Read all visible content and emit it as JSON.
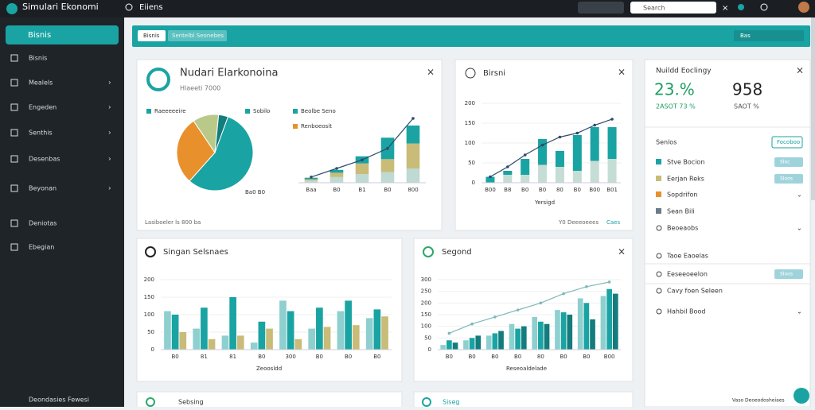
{
  "topbar": {
    "app_name": "Simulari Ekonomi",
    "tab": "Eiiens",
    "search": "Search"
  },
  "sidebar": {
    "active": "Bisnis",
    "items": [
      "Bisnis",
      "Mealels",
      "Engeden",
      "Senthis",
      "Desenbas",
      "Beyonan",
      "Deniotas",
      "Ebegian"
    ],
    "footer": "Deondasies Fewesi"
  },
  "toolbar": {
    "buttons": [
      "Bisnis",
      "Sentelbl Seonebes"
    ],
    "right": "Bas"
  },
  "cards": [
    {
      "title": "Nudari Elarkonoina",
      "subtitle": "Hlaeeti 7000",
      "footer": "Lasiboeler ls 800 ba",
      "legend": [
        {
          "label": "Raeeeeeire",
          "color": "#1aa3a3"
        },
        {
          "label": "Sobilo",
          "color": "#1aa3a3"
        },
        {
          "label": "Beolbe Seno",
          "color": "#1aa3a3"
        },
        {
          "label": "Renboeosit",
          "color": "#e8912c"
        }
      ],
      "pie": {
        "values": [
          56,
          29,
          11,
          4
        ],
        "colors": [
          "#1aa3a3",
          "#e8912c",
          "#b9c98a",
          "#137c7c"
        ],
        "note": "Ba0 B0"
      },
      "chart": {
        "ylim": [
          0,
          100
        ],
        "categories": [
          "Baa",
          "B0",
          "B1",
          "B0",
          "800"
        ],
        "stacked": true,
        "series": [
          {
            "color": "#bfd9d3",
            "values": [
              3,
              8,
              12,
              15,
              20
            ]
          },
          {
            "color": "#c9bc78",
            "values": [
              2,
              6,
              15,
              18,
              35
            ]
          },
          {
            "color": "#1aa3a3",
            "values": [
              2,
              4,
              10,
              30,
              25
            ]
          },
          {
            "kind": "line",
            "color": "#2e4a6b",
            "values": [
              8,
              20,
              32,
              48,
              90
            ]
          }
        ]
      }
    },
    {
      "title": "Birsni",
      "legend": "Yersigd",
      "footer": "Y0 Deeeoeees",
      "footer_button": "Caes",
      "chart": {
        "ylim": [
          0,
          200
        ],
        "yticks": [
          0,
          50,
          100,
          150,
          200
        ],
        "categories": [
          "B00",
          "B8",
          "B0",
          "B0",
          "80",
          "B0",
          "B00",
          "B01"
        ],
        "stacked": true,
        "series": [
          {
            "color": "#c5ddd4",
            "values": [
              0,
              20,
              20,
              45,
              40,
              30,
              55,
              60
            ]
          },
          {
            "color": "#1aa3a3",
            "values": [
              15,
              10,
              40,
              65,
              40,
              90,
              85,
              80
            ]
          },
          {
            "kind": "line",
            "color": "#2e4a6b",
            "values": [
              15,
              40,
              70,
              95,
              115,
              125,
              145,
              160
            ]
          }
        ]
      }
    },
    {
      "title": "Singan Selsnaes",
      "legend": "Zeoosldd",
      "chart": {
        "ylim": [
          0,
          200
        ],
        "yticks": [
          0,
          50,
          100,
          150,
          200
        ],
        "categories": [
          "B0",
          "81",
          "81",
          "B0",
          "300",
          "B0",
          "B0",
          "B0"
        ],
        "series": [
          {
            "color": "#8ecfcf",
            "values": [
              110,
              60,
              40,
              20,
              140,
              60,
              110,
              90
            ]
          },
          {
            "color": "#1aa3a3",
            "values": [
              100,
              120,
              150,
              80,
              110,
              120,
              140,
              115
            ]
          },
          {
            "color": "#c9bc78",
            "values": [
              50,
              30,
              40,
              60,
              30,
              65,
              70,
              95
            ]
          }
        ]
      }
    },
    {
      "title": "Segond",
      "legend": "Reseoaldelade",
      "chart": {
        "ylim": [
          0,
          300
        ],
        "yticks": [
          0,
          50,
          100,
          150,
          200,
          250,
          300
        ],
        "categories": [
          "B0",
          "B0",
          "B0",
          "B0",
          "80",
          "B0",
          "B0",
          "B00"
        ],
        "series": [
          {
            "color": "#8ecfcf",
            "values": [
              20,
              40,
              60,
              110,
              140,
              170,
              220,
              230
            ]
          },
          {
            "color": "#1aa3a3",
            "values": [
              40,
              50,
              70,
              90,
              120,
              160,
              200,
              260
            ]
          },
          {
            "color": "#137c7c",
            "values": [
              30,
              60,
              80,
              100,
              110,
              150,
              130,
              240
            ]
          },
          {
            "kind": "line",
            "color": "#7fb8b8",
            "values": [
              70,
              110,
              140,
              170,
              200,
              240,
              270,
              290
            ]
          }
        ]
      }
    }
  ],
  "bottom_cards": [
    "Sebsing",
    "Siseg"
  ],
  "panel": {
    "title": "Nuildd Eoclingy",
    "kpis": [
      {
        "value": "23.%",
        "label": "2ASOT 73 %"
      },
      {
        "value": "958",
        "label": "SAOT %"
      }
    ],
    "section": "Senlos",
    "section_button": "Focoboo",
    "items": [
      {
        "label": "Stve Bocion",
        "color": "#1aa3a3",
        "button": "Sloc"
      },
      {
        "label": "Eerjan Reks",
        "color": "#c9bc78",
        "button": "Sloos"
      },
      {
        "label": "Sopdrifon",
        "color": "#e8912c"
      },
      {
        "label": "Sean Bili",
        "color": "#6b7b8b"
      },
      {
        "label": "Beoeaobs"
      },
      {
        "label": "Taoe Eaoelas"
      },
      {
        "label": "Eeseeoeelon",
        "button": "Sloos"
      },
      {
        "label": "Cavy foen Seleen"
      },
      {
        "label": "Hahbil Bood"
      }
    ],
    "footer": "Vaso Deoeodosheiaes"
  }
}
